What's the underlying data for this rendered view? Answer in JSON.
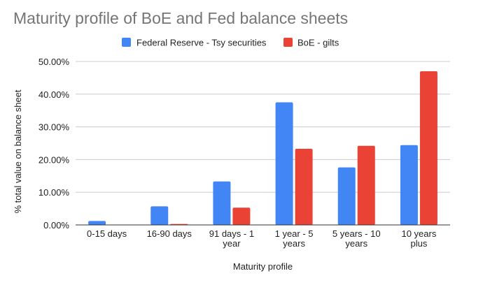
{
  "chart_data": {
    "type": "bar",
    "title": "Maturity profile of BoE and Fed balance sheets",
    "xlabel": "Maturity profile",
    "ylabel": "% total value on balance sheet",
    "categories": [
      [
        "0-15 days"
      ],
      [
        "16-90 days"
      ],
      [
        "91 days - 1",
        "year"
      ],
      [
        "1 year - 5",
        "years"
      ],
      [
        "5 years - 10",
        "years"
      ],
      [
        "10 years",
        "plus"
      ]
    ],
    "series": [
      {
        "name": "Federal Reserve - Tsy securities",
        "color": "#4285f4",
        "values": [
          1.2,
          5.7,
          13.3,
          37.5,
          17.6,
          24.4
        ]
      },
      {
        "name": "BoE - gilts",
        "color": "#ea4335",
        "values": [
          0.0,
          0.3,
          5.3,
          23.3,
          24.2,
          47.0
        ]
      }
    ],
    "ylim": [
      0,
      50
    ],
    "yticks": [
      0,
      10,
      20,
      30,
      40,
      50
    ],
    "ytick_labels": [
      "0.00%",
      "10.00%",
      "20.00%",
      "30.00%",
      "40.00%",
      "50.00%"
    ],
    "grid": true,
    "legend_position": "top-center"
  }
}
